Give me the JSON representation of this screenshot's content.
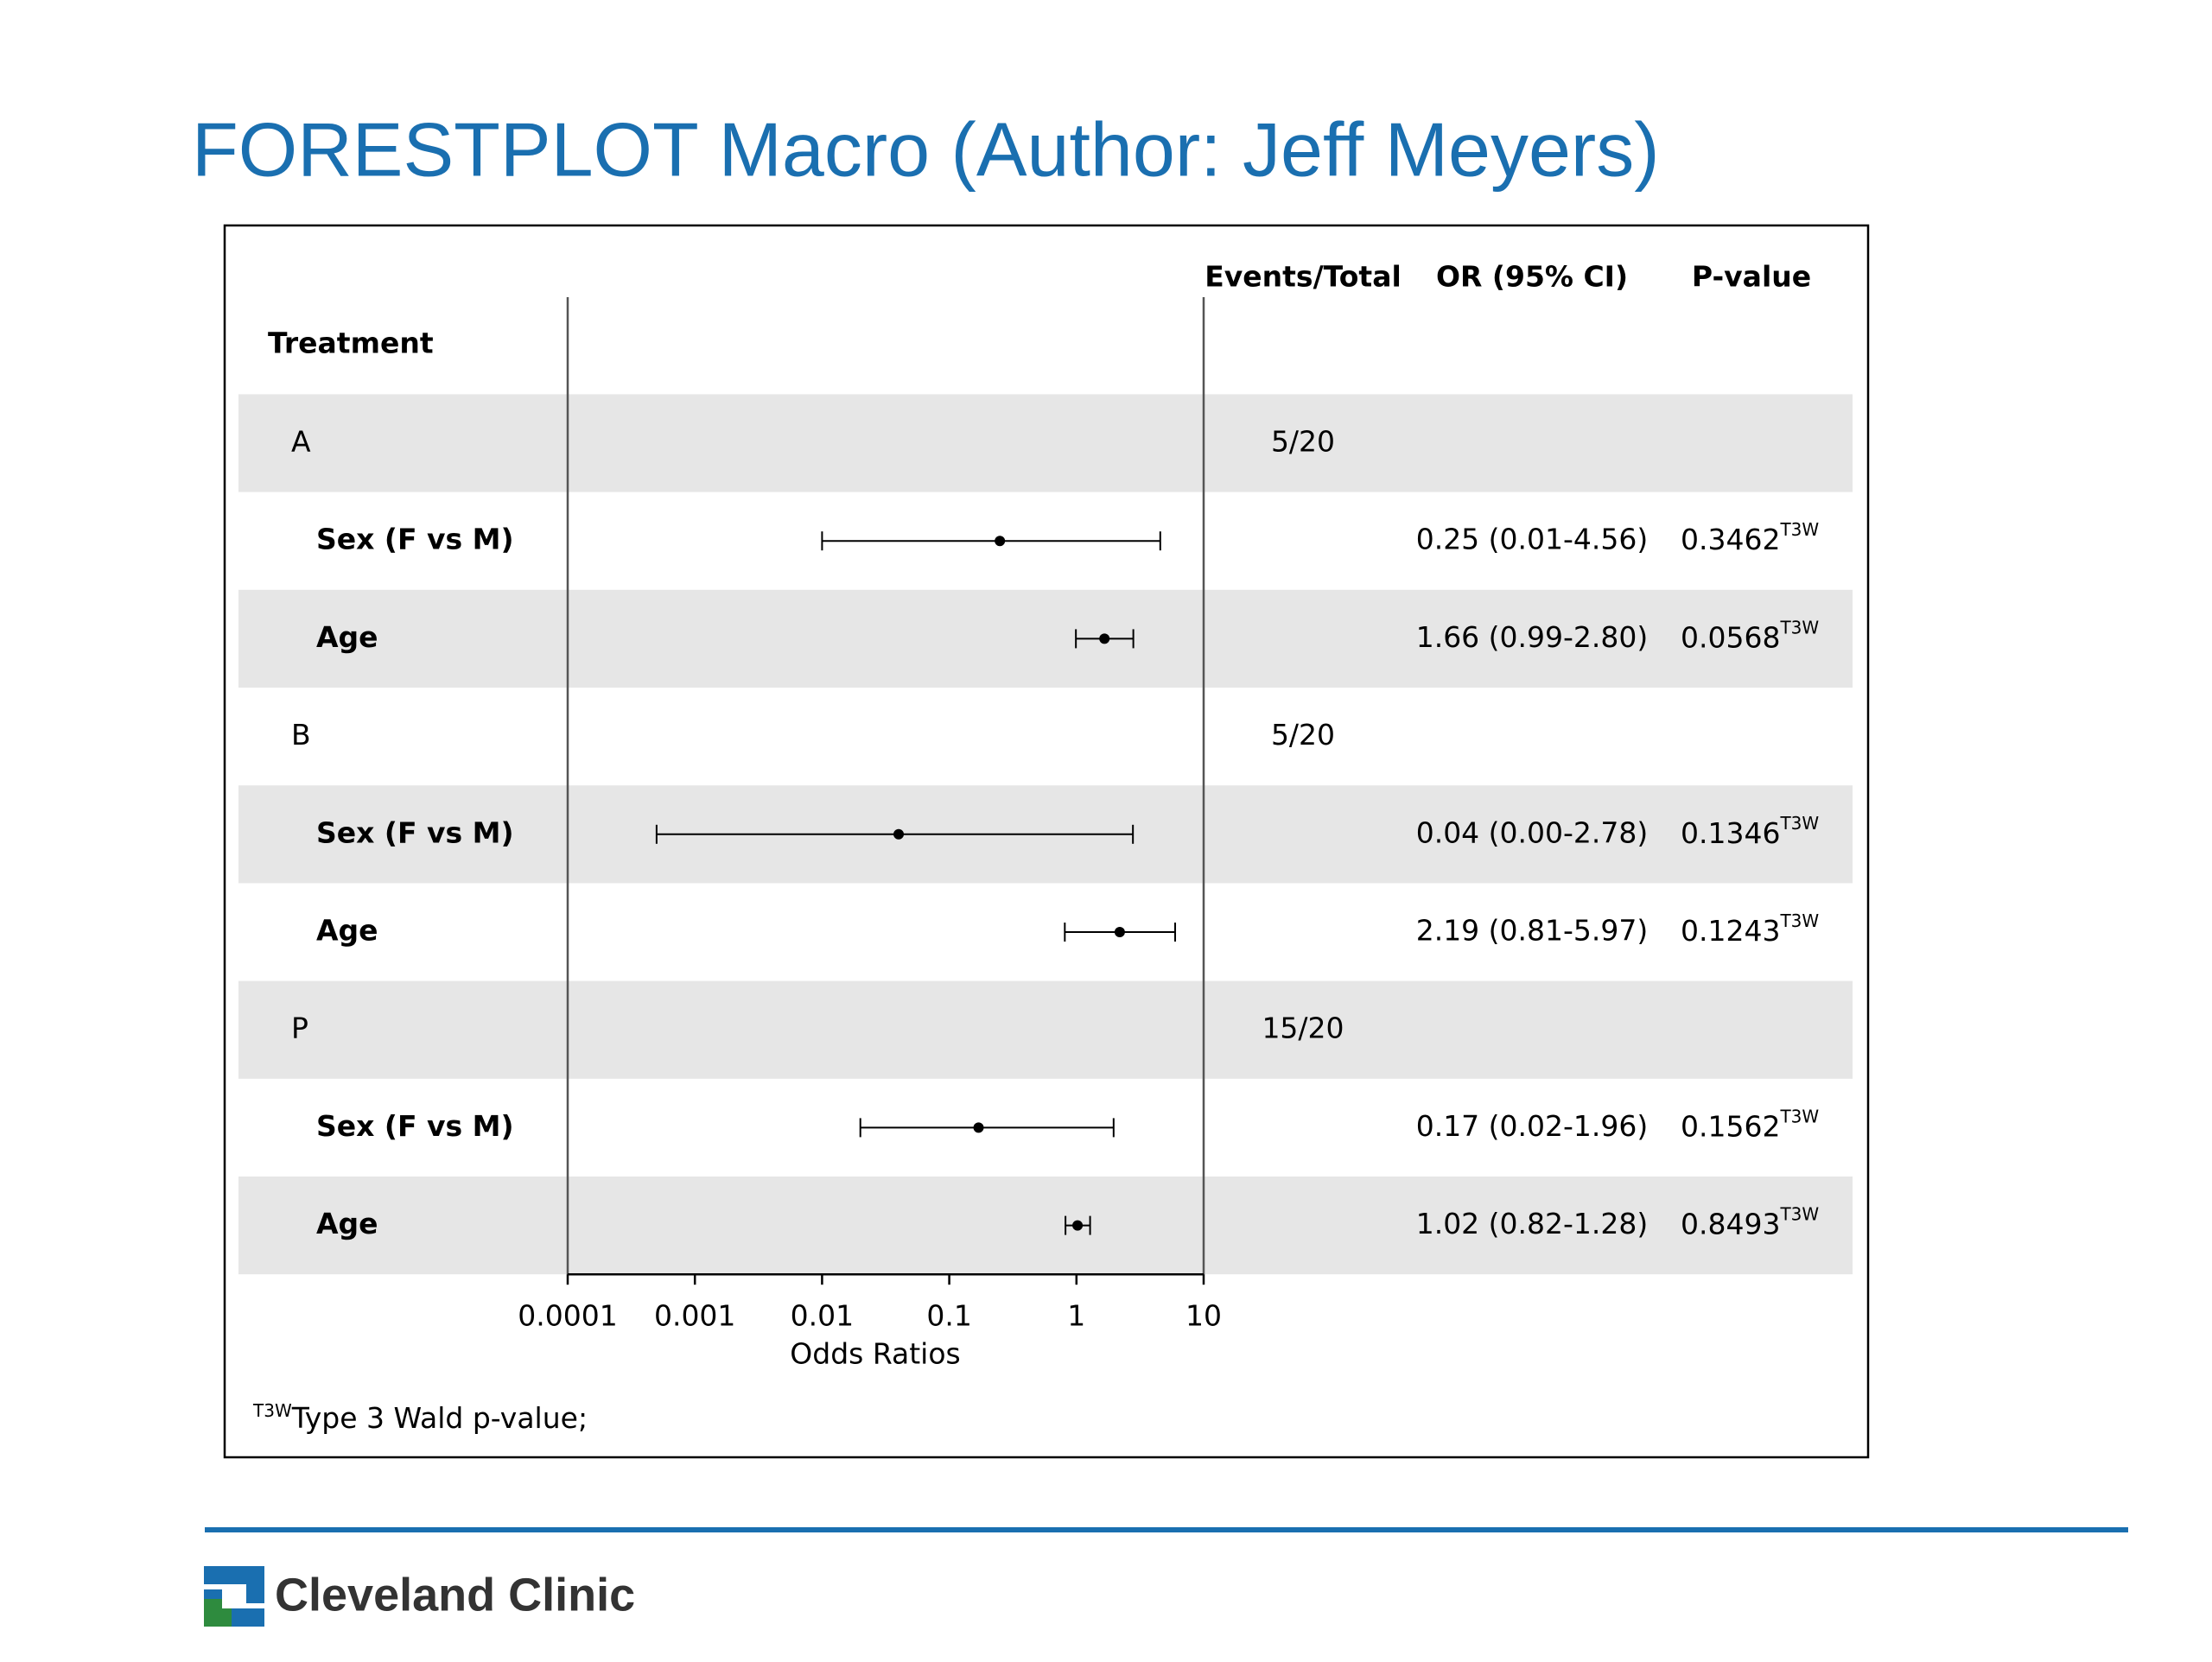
{
  "slide_title": "FORESTPLOT Macro (Author: Jeff Meyers)",
  "chart_data": {
    "type": "forest",
    "columns": {
      "label": "Treatment",
      "events": "Events/Total",
      "estimate": "OR (95% CI)",
      "p_value": "P-value"
    },
    "rows": [
      {
        "label": "A",
        "events": "5/20"
      },
      {
        "label": "Sex (F vs M)",
        "or": 0.25,
        "lower": 0.01,
        "upper": 4.56,
        "ci_label": "0.25 (0.01-4.56)",
        "p_value": "0.3462",
        "p_note": "T3W"
      },
      {
        "label": "Age",
        "or": 1.66,
        "lower": 0.99,
        "upper": 2.8,
        "ci_label": "1.66 (0.99-2.80)",
        "p_value": "0.0568",
        "p_note": "T3W"
      },
      {
        "label": "B",
        "events": "5/20"
      },
      {
        "label": "Sex (F vs M)",
        "or": 0.04,
        "lower": 0.0005,
        "upper": 2.78,
        "ci_label": "0.04 (0.00-2.78)",
        "p_value": "0.1346",
        "p_note": "T3W"
      },
      {
        "label": "Age",
        "or": 2.19,
        "lower": 0.81,
        "upper": 5.97,
        "ci_label": "2.19 (0.81-5.97)",
        "p_value": "0.1243",
        "p_note": "T3W"
      },
      {
        "label": "P",
        "events": "15/20"
      },
      {
        "label": "Sex (F vs M)",
        "or": 0.17,
        "lower": 0.02,
        "upper": 1.96,
        "ci_label": "0.17 (0.02-1.96)",
        "p_value": "0.1562",
        "p_note": "T3W"
      },
      {
        "label": "Age",
        "or": 1.02,
        "lower": 0.82,
        "upper": 1.28,
        "ci_label": "1.02 (0.82-1.28)",
        "p_value": "0.8493",
        "p_note": "T3W"
      }
    ],
    "xlabel": "Odds Ratios",
    "xlim": [
      0.0001,
      10
    ],
    "xticks": [
      0.0001,
      0.001,
      0.01,
      0.1,
      1,
      10
    ],
    "log_x": true,
    "striped": true,
    "stripe_color": "#e6e6e6",
    "color": "#000000",
    "footnote": {
      "mark": "T3W",
      "text": "Type 3 Wald p-value;"
    }
  },
  "footer": {
    "logo_text": "Cleveland Clinic"
  }
}
